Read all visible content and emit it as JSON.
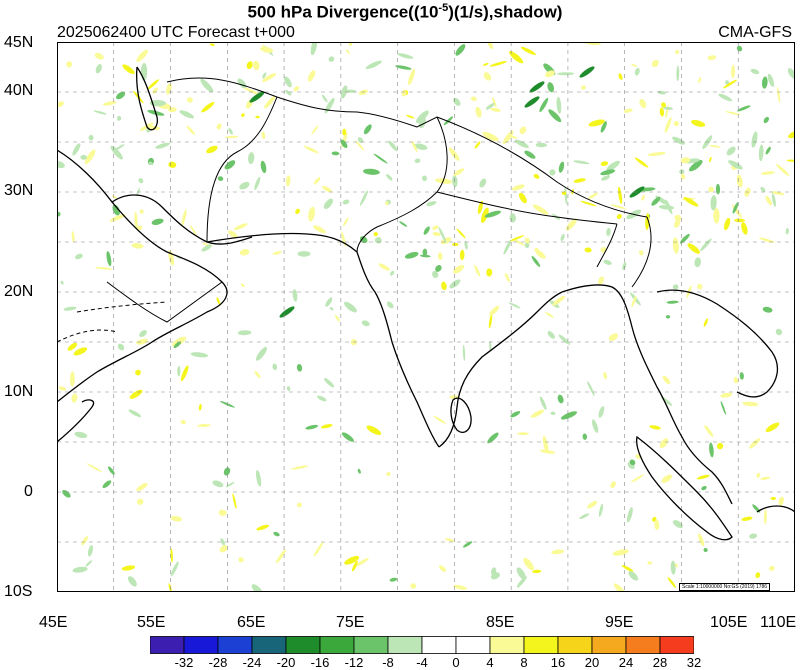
{
  "header": {
    "title_pre": "500 hPa Divergence((10",
    "title_sup": "-5",
    "title_post": ")(1/s),shadow)",
    "run_info": "2025062400 UTC Forecast t+000",
    "model": "CMA-GFS"
  },
  "map": {
    "lat_labels": [
      "45N",
      "40N",
      "30N",
      "20N",
      "10N",
      "0",
      "10S"
    ],
    "lat_values": [
      45,
      40,
      30,
      20,
      10,
      0,
      -10
    ],
    "lon_labels": [
      "45E",
      "55E",
      "65E",
      "75E",
      "85E",
      "95E",
      "105E",
      "110E"
    ],
    "lon_values": [
      45,
      55,
      65,
      75,
      85,
      95,
      105,
      110
    ],
    "lat_range": [
      -10,
      45
    ],
    "lon_range": [
      45,
      110
    ],
    "grid_dashed": true,
    "scale_note": "Scale 1:10000000 No:GS (2019) 1786"
  },
  "colorbar": {
    "labels": [
      "-32",
      "-28",
      "-24",
      "-20",
      "-16",
      "-12",
      "-8",
      "-4",
      "0",
      "4",
      "8",
      "16",
      "20",
      "24",
      "28",
      "32"
    ],
    "colors": [
      "#3c1fb0",
      "#1818d8",
      "#1c3fd4",
      "#18657a",
      "#1f8c2c",
      "#3aa83a",
      "#6cc46a",
      "#bde6b6",
      "#ffffff",
      "#ffffff",
      "#fafa96",
      "#f5f51e",
      "#f5d41a",
      "#f5a91e",
      "#f57d1e",
      "#f53c1e"
    ]
  },
  "colors": {
    "neg_strong": "#1f8c2c",
    "neg_mid": "#6cc46a",
    "neg_weak": "#bde6b6",
    "pos_weak": "#fafa96",
    "pos_mid": "#f5f51e",
    "grid": "#888888",
    "border": "#000000"
  }
}
